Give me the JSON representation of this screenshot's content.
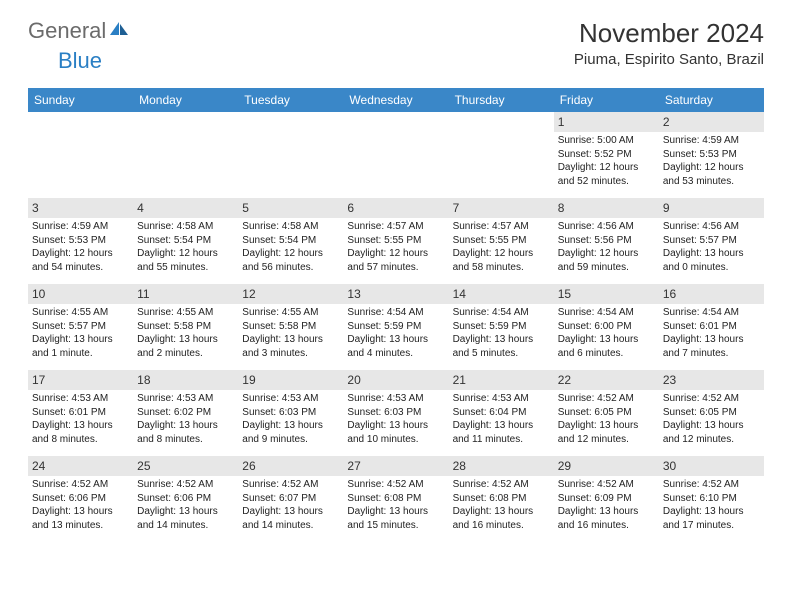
{
  "brand": {
    "general": "General",
    "blue": "Blue"
  },
  "title": "November 2024",
  "location": "Piuma, Espirito Santo, Brazil",
  "colors": {
    "header_bg": "#3a87c8",
    "header_fg": "#ffffff",
    "spacer_bg": "#e7e7e7",
    "text": "#222222",
    "brand_gray": "#6b6b6b",
    "brand_blue": "#2a7fc4"
  },
  "weekdays": [
    "Sunday",
    "Monday",
    "Tuesday",
    "Wednesday",
    "Thursday",
    "Friday",
    "Saturday"
  ],
  "weeks": [
    [
      {
        "day": "",
        "sunrise": "",
        "sunset": "",
        "daylight": ""
      },
      {
        "day": "",
        "sunrise": "",
        "sunset": "",
        "daylight": ""
      },
      {
        "day": "",
        "sunrise": "",
        "sunset": "",
        "daylight": ""
      },
      {
        "day": "",
        "sunrise": "",
        "sunset": "",
        "daylight": ""
      },
      {
        "day": "",
        "sunrise": "",
        "sunset": "",
        "daylight": ""
      },
      {
        "day": "1",
        "sunrise": "Sunrise: 5:00 AM",
        "sunset": "Sunset: 5:52 PM",
        "daylight": "Daylight: 12 hours and 52 minutes."
      },
      {
        "day": "2",
        "sunrise": "Sunrise: 4:59 AM",
        "sunset": "Sunset: 5:53 PM",
        "daylight": "Daylight: 12 hours and 53 minutes."
      }
    ],
    [
      {
        "day": "3",
        "sunrise": "Sunrise: 4:59 AM",
        "sunset": "Sunset: 5:53 PM",
        "daylight": "Daylight: 12 hours and 54 minutes."
      },
      {
        "day": "4",
        "sunrise": "Sunrise: 4:58 AM",
        "sunset": "Sunset: 5:54 PM",
        "daylight": "Daylight: 12 hours and 55 minutes."
      },
      {
        "day": "5",
        "sunrise": "Sunrise: 4:58 AM",
        "sunset": "Sunset: 5:54 PM",
        "daylight": "Daylight: 12 hours and 56 minutes."
      },
      {
        "day": "6",
        "sunrise": "Sunrise: 4:57 AM",
        "sunset": "Sunset: 5:55 PM",
        "daylight": "Daylight: 12 hours and 57 minutes."
      },
      {
        "day": "7",
        "sunrise": "Sunrise: 4:57 AM",
        "sunset": "Sunset: 5:55 PM",
        "daylight": "Daylight: 12 hours and 58 minutes."
      },
      {
        "day": "8",
        "sunrise": "Sunrise: 4:56 AM",
        "sunset": "Sunset: 5:56 PM",
        "daylight": "Daylight: 12 hours and 59 minutes."
      },
      {
        "day": "9",
        "sunrise": "Sunrise: 4:56 AM",
        "sunset": "Sunset: 5:57 PM",
        "daylight": "Daylight: 13 hours and 0 minutes."
      }
    ],
    [
      {
        "day": "10",
        "sunrise": "Sunrise: 4:55 AM",
        "sunset": "Sunset: 5:57 PM",
        "daylight": "Daylight: 13 hours and 1 minute."
      },
      {
        "day": "11",
        "sunrise": "Sunrise: 4:55 AM",
        "sunset": "Sunset: 5:58 PM",
        "daylight": "Daylight: 13 hours and 2 minutes."
      },
      {
        "day": "12",
        "sunrise": "Sunrise: 4:55 AM",
        "sunset": "Sunset: 5:58 PM",
        "daylight": "Daylight: 13 hours and 3 minutes."
      },
      {
        "day": "13",
        "sunrise": "Sunrise: 4:54 AM",
        "sunset": "Sunset: 5:59 PM",
        "daylight": "Daylight: 13 hours and 4 minutes."
      },
      {
        "day": "14",
        "sunrise": "Sunrise: 4:54 AM",
        "sunset": "Sunset: 5:59 PM",
        "daylight": "Daylight: 13 hours and 5 minutes."
      },
      {
        "day": "15",
        "sunrise": "Sunrise: 4:54 AM",
        "sunset": "Sunset: 6:00 PM",
        "daylight": "Daylight: 13 hours and 6 minutes."
      },
      {
        "day": "16",
        "sunrise": "Sunrise: 4:54 AM",
        "sunset": "Sunset: 6:01 PM",
        "daylight": "Daylight: 13 hours and 7 minutes."
      }
    ],
    [
      {
        "day": "17",
        "sunrise": "Sunrise: 4:53 AM",
        "sunset": "Sunset: 6:01 PM",
        "daylight": "Daylight: 13 hours and 8 minutes."
      },
      {
        "day": "18",
        "sunrise": "Sunrise: 4:53 AM",
        "sunset": "Sunset: 6:02 PM",
        "daylight": "Daylight: 13 hours and 8 minutes."
      },
      {
        "day": "19",
        "sunrise": "Sunrise: 4:53 AM",
        "sunset": "Sunset: 6:03 PM",
        "daylight": "Daylight: 13 hours and 9 minutes."
      },
      {
        "day": "20",
        "sunrise": "Sunrise: 4:53 AM",
        "sunset": "Sunset: 6:03 PM",
        "daylight": "Daylight: 13 hours and 10 minutes."
      },
      {
        "day": "21",
        "sunrise": "Sunrise: 4:53 AM",
        "sunset": "Sunset: 6:04 PM",
        "daylight": "Daylight: 13 hours and 11 minutes."
      },
      {
        "day": "22",
        "sunrise": "Sunrise: 4:52 AM",
        "sunset": "Sunset: 6:05 PM",
        "daylight": "Daylight: 13 hours and 12 minutes."
      },
      {
        "day": "23",
        "sunrise": "Sunrise: 4:52 AM",
        "sunset": "Sunset: 6:05 PM",
        "daylight": "Daylight: 13 hours and 12 minutes."
      }
    ],
    [
      {
        "day": "24",
        "sunrise": "Sunrise: 4:52 AM",
        "sunset": "Sunset: 6:06 PM",
        "daylight": "Daylight: 13 hours and 13 minutes."
      },
      {
        "day": "25",
        "sunrise": "Sunrise: 4:52 AM",
        "sunset": "Sunset: 6:06 PM",
        "daylight": "Daylight: 13 hours and 14 minutes."
      },
      {
        "day": "26",
        "sunrise": "Sunrise: 4:52 AM",
        "sunset": "Sunset: 6:07 PM",
        "daylight": "Daylight: 13 hours and 14 minutes."
      },
      {
        "day": "27",
        "sunrise": "Sunrise: 4:52 AM",
        "sunset": "Sunset: 6:08 PM",
        "daylight": "Daylight: 13 hours and 15 minutes."
      },
      {
        "day": "28",
        "sunrise": "Sunrise: 4:52 AM",
        "sunset": "Sunset: 6:08 PM",
        "daylight": "Daylight: 13 hours and 16 minutes."
      },
      {
        "day": "29",
        "sunrise": "Sunrise: 4:52 AM",
        "sunset": "Sunset: 6:09 PM",
        "daylight": "Daylight: 13 hours and 16 minutes."
      },
      {
        "day": "30",
        "sunrise": "Sunrise: 4:52 AM",
        "sunset": "Sunset: 6:10 PM",
        "daylight": "Daylight: 13 hours and 17 minutes."
      }
    ]
  ]
}
